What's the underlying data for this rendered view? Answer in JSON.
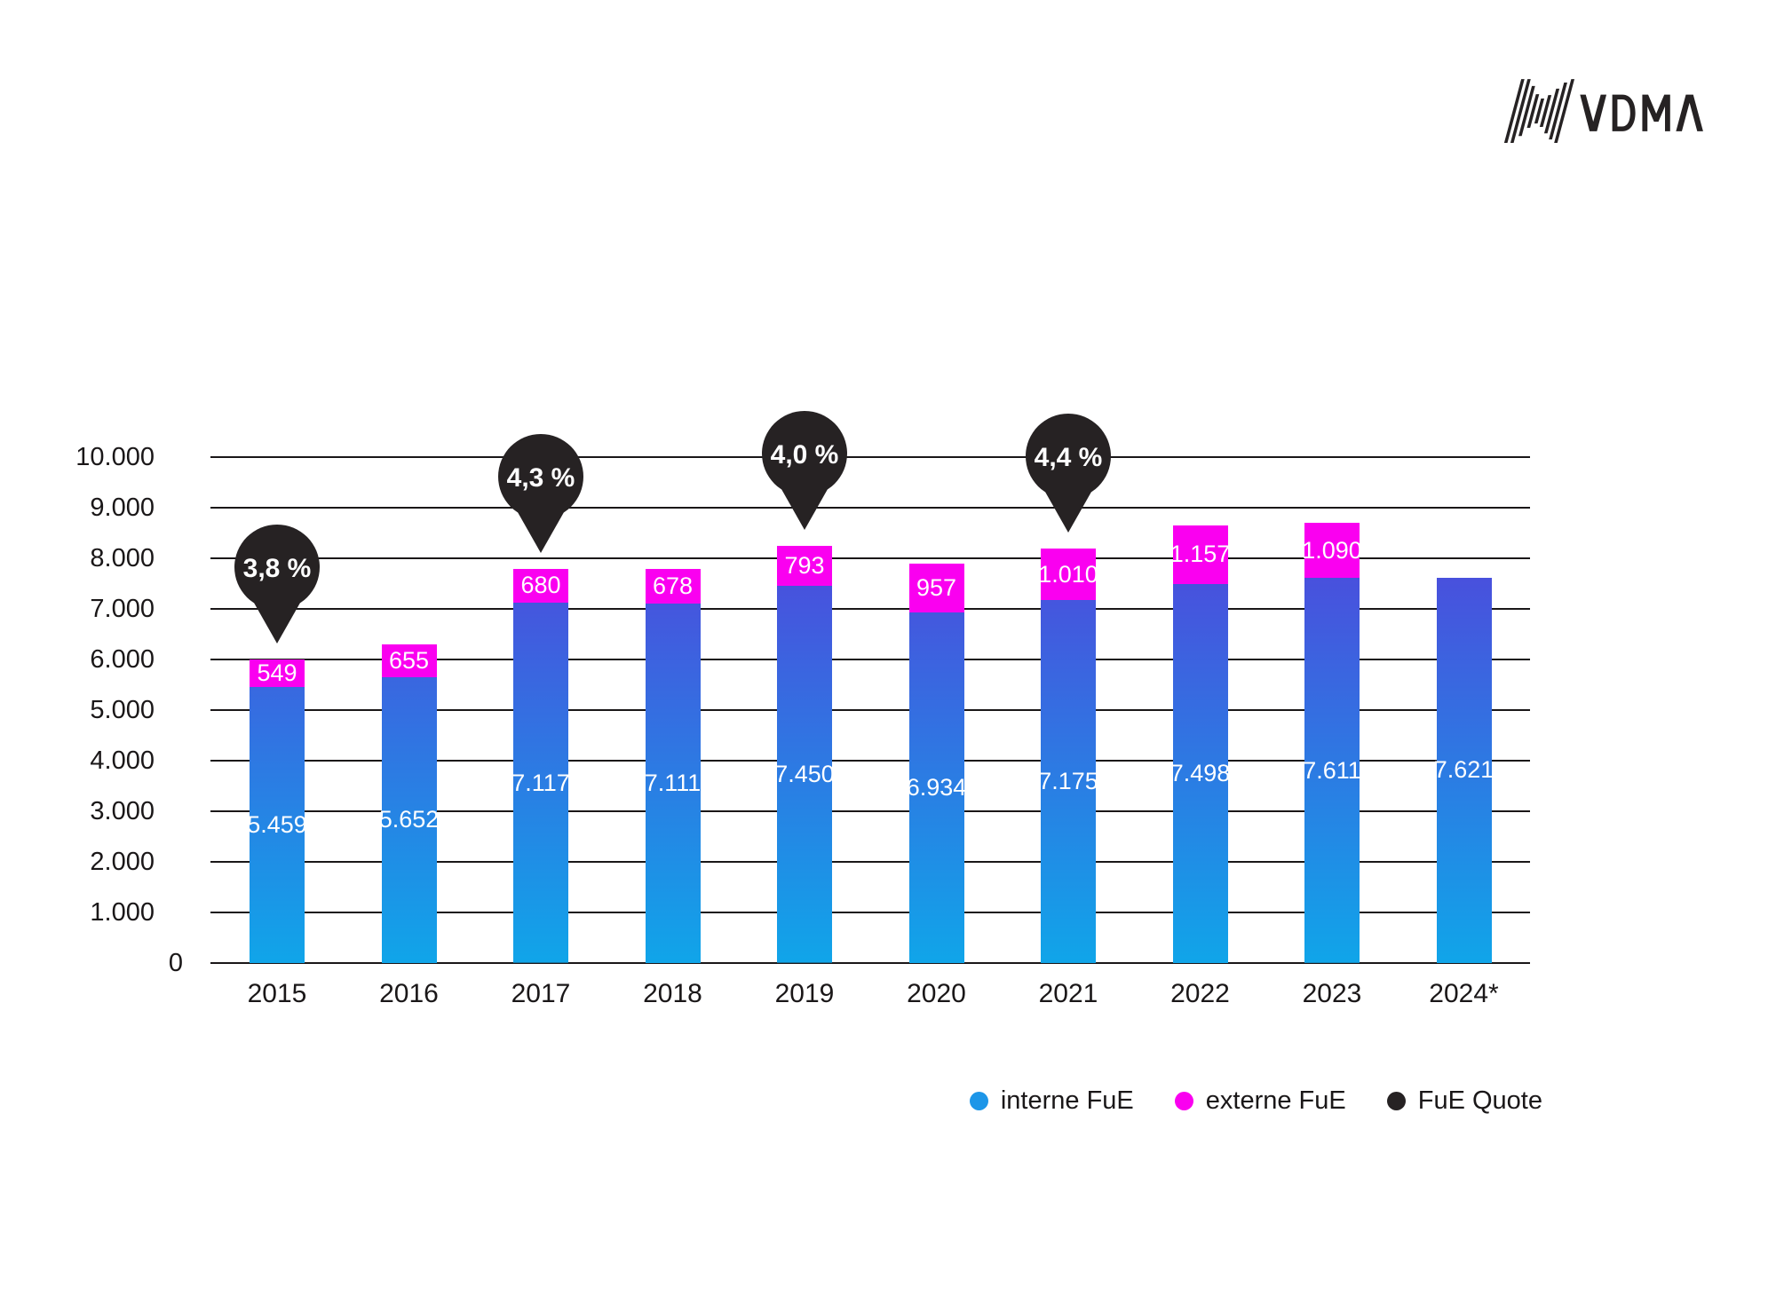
{
  "logo": {
    "text": "VDMA"
  },
  "chart_data": {
    "type": "bar",
    "stacked": true,
    "title": "",
    "xlabel": "",
    "ylabel": "",
    "categories": [
      "2015",
      "2016",
      "2017",
      "2018",
      "2019",
      "2020",
      "2021",
      "2022",
      "2023",
      "2024*"
    ],
    "series": [
      {
        "name": "interne FuE",
        "values": [
          5459,
          5652,
          7117,
          7111,
          7450,
          6934,
          7175,
          7498,
          7611,
          7621
        ],
        "labels": [
          "5.459",
          "5.652",
          "7.117",
          "7.111",
          "7.450",
          "6.934",
          "7.175",
          "7.498",
          "7.611",
          "7.621"
        ],
        "color_top": "#5a36d9",
        "color_bottom": "#10a5e9"
      },
      {
        "name": "externe FuE",
        "values": [
          549,
          655,
          680,
          678,
          793,
          957,
          1010,
          1157,
          1090,
          null
        ],
        "labels": [
          "549",
          "655",
          "680",
          "678",
          "793",
          "957",
          "1.010",
          "1.157",
          "1.090",
          null
        ],
        "color": "#fa00f0"
      },
      {
        "name": "FuE Quote",
        "values": [
          3.8,
          null,
          4.3,
          null,
          4.0,
          null,
          4.4,
          null,
          null,
          null
        ],
        "labels": [
          "3,8 %",
          null,
          "4,3 %",
          null,
          "4,0 %",
          null,
          "4,4 %",
          null,
          null,
          null
        ],
        "unit": "%",
        "marker": "pin",
        "color": "#262223"
      }
    ],
    "ylim": [
      0,
      10000
    ],
    "y_ticks": [
      {
        "value": 10000,
        "label": "10.000",
        "major": true
      },
      {
        "value": 9000,
        "label": "9.000",
        "major": false
      },
      {
        "value": 8000,
        "label": "8.000",
        "major": false
      },
      {
        "value": 7000,
        "label": "7.000",
        "major": false
      },
      {
        "value": 6000,
        "label": "6.000",
        "major": true
      },
      {
        "value": 5000,
        "label": "5.000",
        "major": false
      },
      {
        "value": 4000,
        "label": "4.000",
        "major": false
      },
      {
        "value": 3000,
        "label": "3.000",
        "major": false
      },
      {
        "value": 2000,
        "label": "2.000",
        "major": true
      },
      {
        "value": 1000,
        "label": "1.000",
        "major": false
      },
      {
        "value": 0,
        "label": "0",
        "major": false
      }
    ],
    "grid": "horizontal",
    "legend_position": "bottom-right"
  },
  "legend": [
    {
      "label": "interne FuE",
      "color": "#1d96e8"
    },
    {
      "label": "externe FuE",
      "color": "#fa00f0"
    },
    {
      "label": "FuE Quote",
      "color": "#262223"
    }
  ]
}
